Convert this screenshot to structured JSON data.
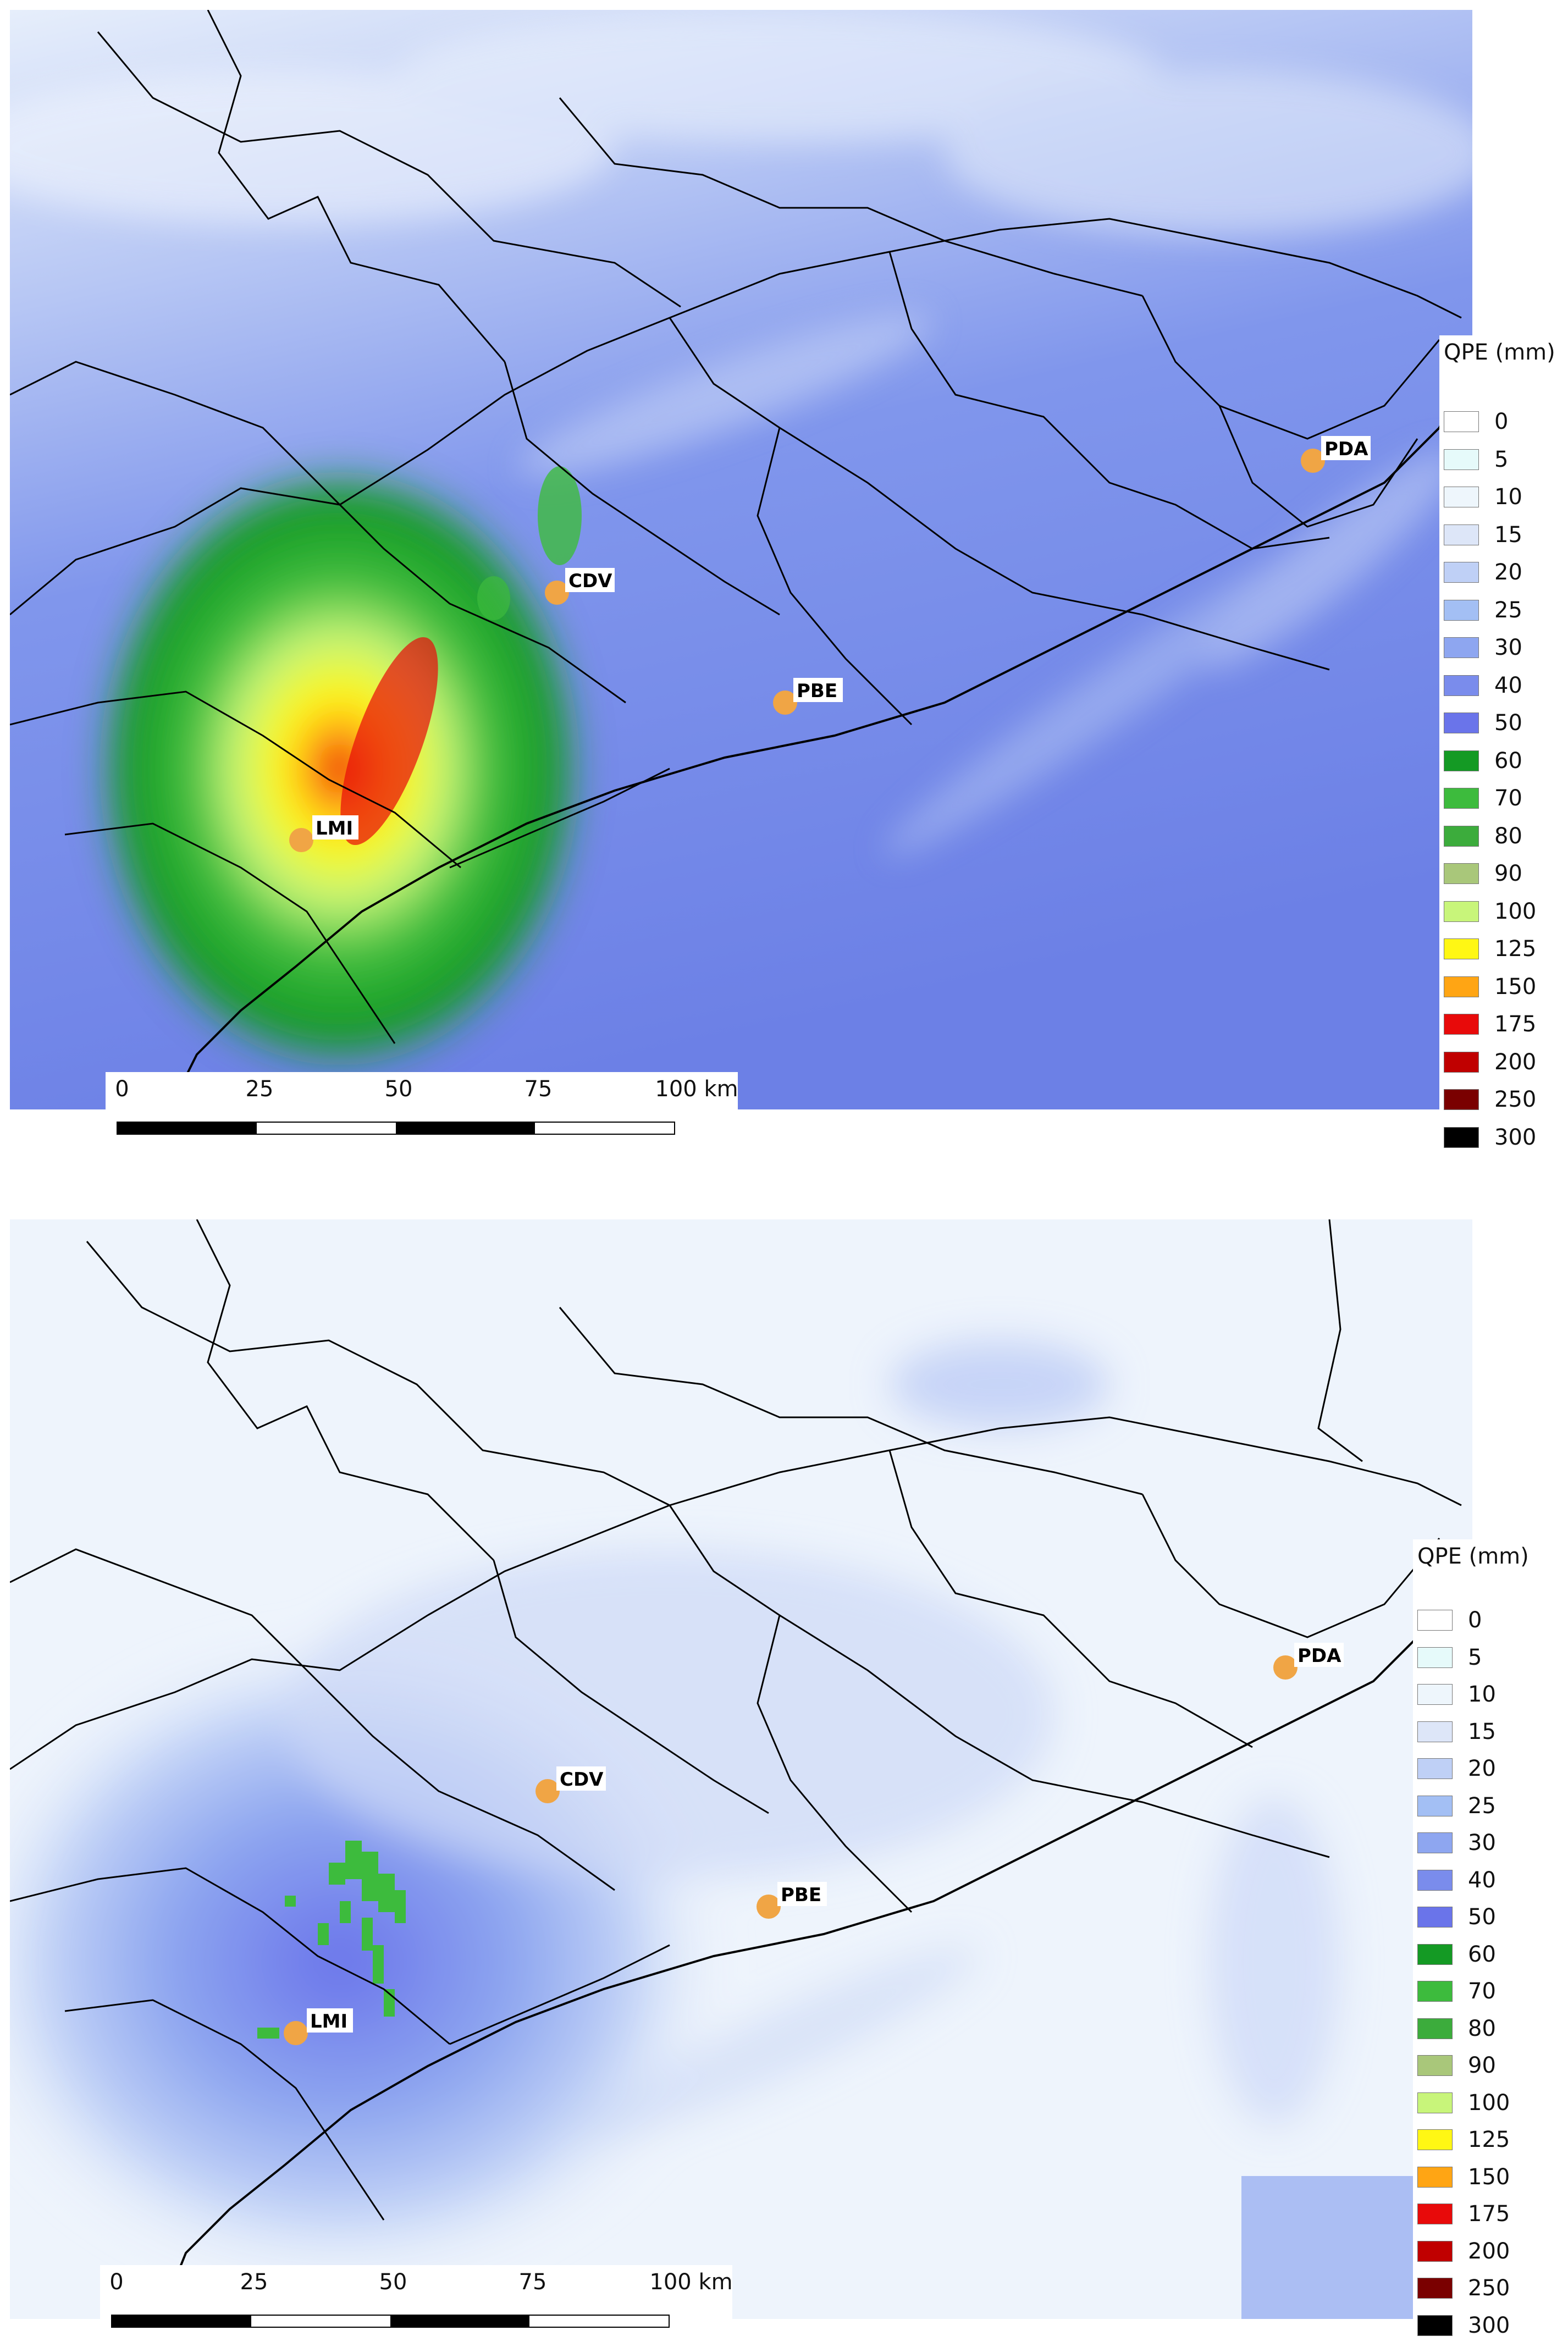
{
  "legend": {
    "title": "QPE (mm)",
    "entries": [
      {
        "label": "0",
        "color": "#ffffff"
      },
      {
        "label": "5",
        "color": "#e6fafa"
      },
      {
        "label": "10",
        "color": "#eef6fc"
      },
      {
        "label": "15",
        "color": "#dde6f8"
      },
      {
        "label": "20",
        "color": "#bfd0f6"
      },
      {
        "label": "25",
        "color": "#a3bff4"
      },
      {
        "label": "30",
        "color": "#8ea6f0"
      },
      {
        "label": "40",
        "color": "#7a8cec"
      },
      {
        "label": "50",
        "color": "#6a74ea"
      },
      {
        "label": "60",
        "color": "#149a24"
      },
      {
        "label": "70",
        "color": "#3dbb3d"
      },
      {
        "label": "80",
        "color": "#3cac3c"
      },
      {
        "label": "90",
        "color": "#a9c77a"
      },
      {
        "label": "100",
        "color": "#c8f57a"
      },
      {
        "label": "125",
        "color": "#fff714"
      },
      {
        "label": "150",
        "color": "#ffa514"
      },
      {
        "label": "175",
        "color": "#e80a0a"
      },
      {
        "label": "200",
        "color": "#c00000"
      },
      {
        "label": "250",
        "color": "#7a0000"
      },
      {
        "label": "300",
        "color": "#000000"
      }
    ]
  },
  "scale_bar": {
    "ticks": [
      "0",
      "25",
      "50",
      "75",
      "100 km"
    ]
  },
  "stations": [
    {
      "code": "LMI"
    },
    {
      "code": "CDV"
    },
    {
      "code": "PBE"
    },
    {
      "code": "PDA"
    }
  ],
  "colors": {
    "station_marker": "#f0a545",
    "sea_blue": "#6f82e6",
    "land_light": "#e8f2fb",
    "border": "#000000"
  }
}
